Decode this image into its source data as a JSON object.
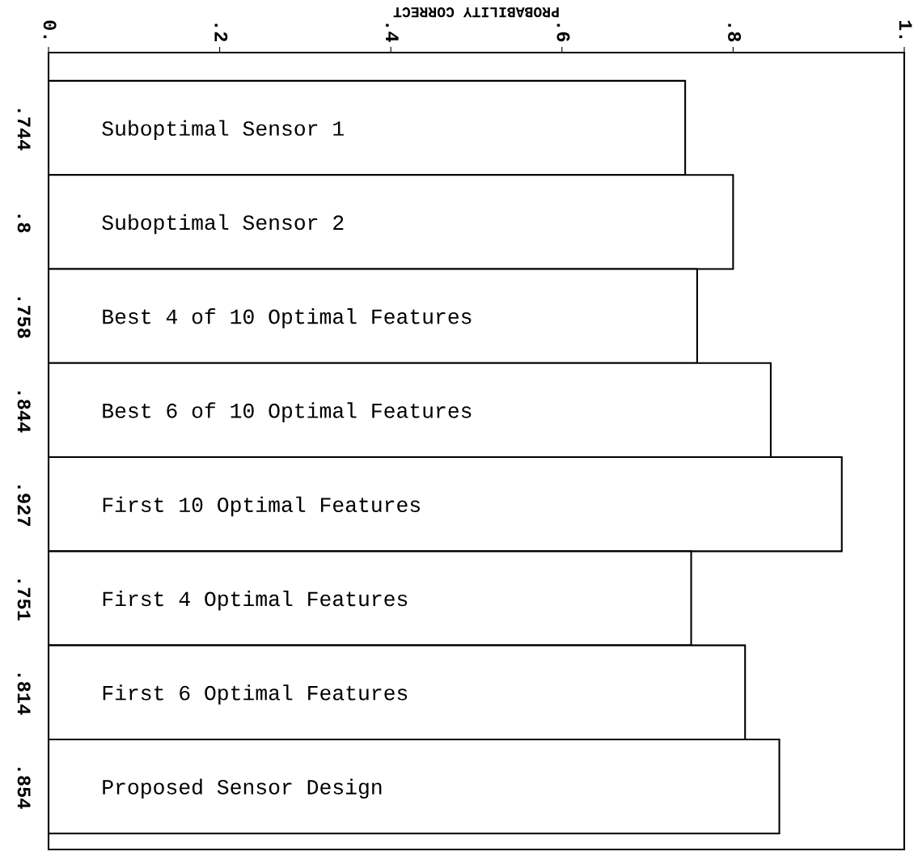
{
  "chart_data": {
    "type": "bar",
    "orientation": "horizontal",
    "xlabel": "PROBABILITY CORRECT",
    "categories": [
      "Suboptimal Sensor 1",
      "Suboptimal Sensor 2",
      "Best 4 of 10 Optimal Features",
      "Best 6 of 10 Optimal Features",
      "First 10 Optimal Features",
      "First 4 Optimal Features",
      "First 6 Optimal Features",
      "Proposed Sensor Design"
    ],
    "values": [
      0.744,
      0.8,
      0.758,
      0.844,
      0.927,
      0.751,
      0.814,
      0.854
    ],
    "value_labels": [
      ".744",
      ".8",
      ".758",
      ".844",
      ".927",
      ".751",
      ".814",
      ".854"
    ],
    "color": "#ffffff",
    "xlim": [
      0,
      1
    ],
    "xticks": [
      {
        "value": 0,
        "label": "0."
      },
      {
        "value": 0.2,
        "label": ".2"
      },
      {
        "value": 0.4,
        "label": ".4"
      },
      {
        "value": 0.6,
        "label": ".6"
      },
      {
        "value": 0.8,
        "label": ".8"
      },
      {
        "value": 1,
        "label": "1."
      }
    ],
    "grid": false,
    "legend": false
  }
}
